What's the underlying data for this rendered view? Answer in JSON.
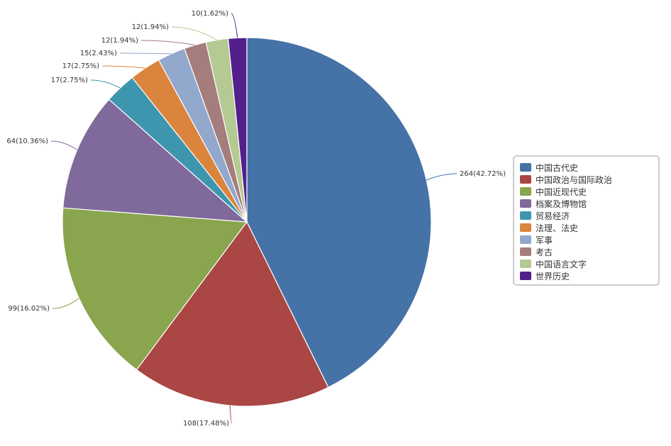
{
  "chart_data": {
    "type": "pie",
    "title": "",
    "slices": [
      {
        "label": "中国古代史",
        "value": 264,
        "data_label": "264(42.72%)",
        "color": "#4572A7"
      },
      {
        "label": "中国政治与国际政治",
        "value": 108,
        "data_label": "108(17.48%)",
        "color": "#AA4643"
      },
      {
        "label": "中国近现代史",
        "value": 99,
        "data_label": "99(16.02%)",
        "color": "#89A54E"
      },
      {
        "label": "档案及博物馆",
        "value": 64,
        "data_label": "64(10.36%)",
        "color": "#80699B"
      },
      {
        "label": "贸易经济",
        "value": 17,
        "data_label": "17(2.75%)",
        "color": "#3D96AE"
      },
      {
        "label": "法理、法史",
        "value": 17,
        "data_label": "17(2.75%)",
        "color": "#DB843D"
      },
      {
        "label": "军事",
        "value": 15,
        "data_label": "15(2.43%)",
        "color": "#92A8CD"
      },
      {
        "label": "考古",
        "value": 12,
        "data_label": "12(1.94%)",
        "color": "#A47D7C"
      },
      {
        "label": "中国语言文字",
        "value": 12,
        "data_label": "12(1.94%)",
        "color": "#B5CA92"
      },
      {
        "label": "世界历史",
        "value": 10,
        "data_label": "10(1.62%)",
        "color": "#531F8D"
      }
    ],
    "legend_position": "right"
  }
}
